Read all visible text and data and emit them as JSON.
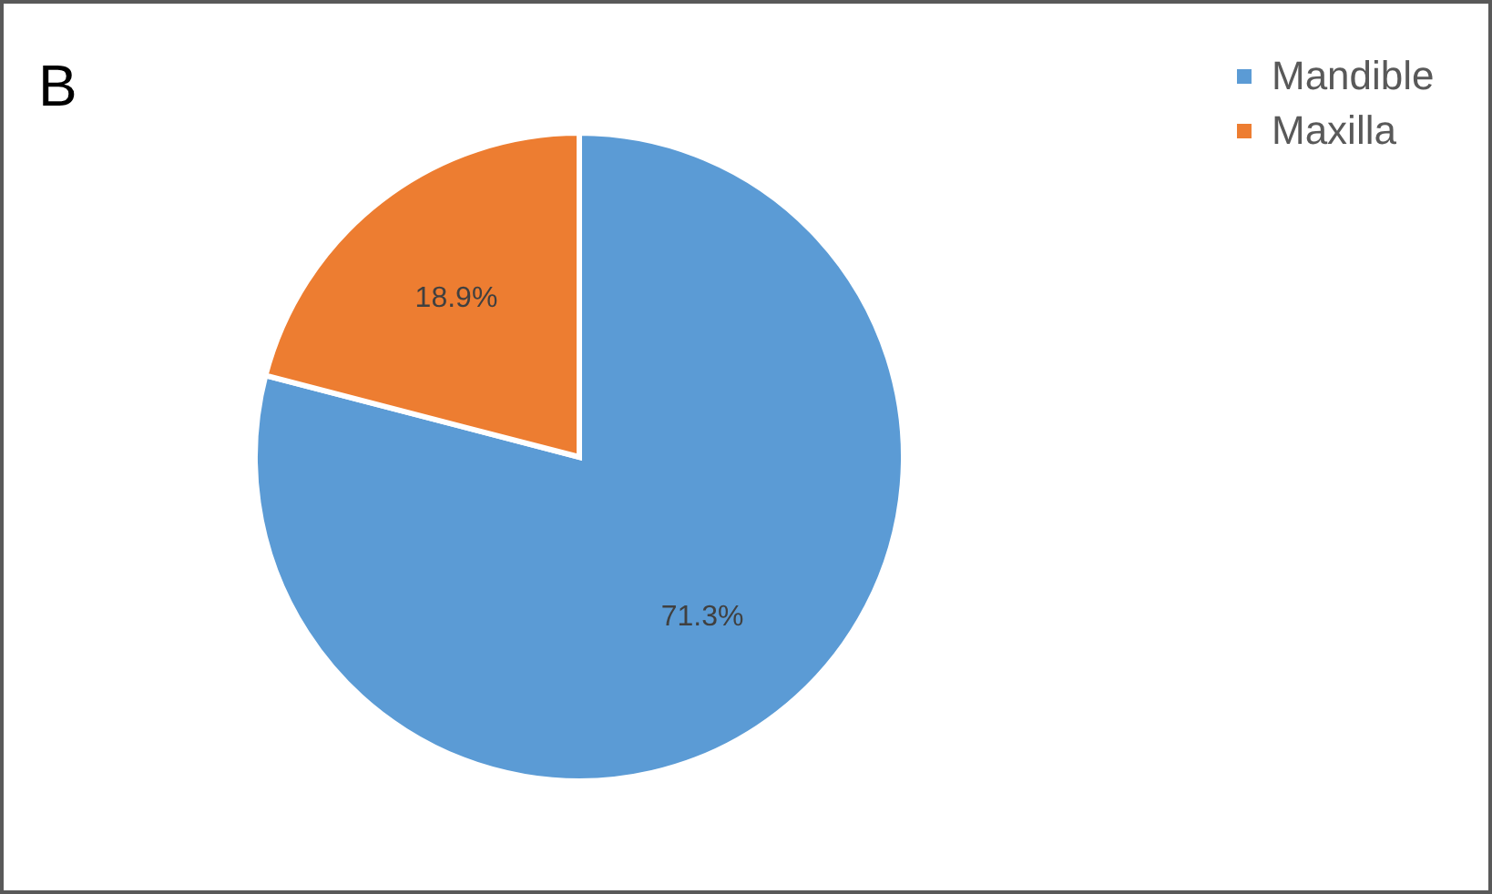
{
  "chart_data": {
    "type": "pie",
    "title": "B",
    "categories": [
      "Mandible",
      "Maxilla"
    ],
    "values": [
      71.3,
      18.9
    ],
    "colors": [
      "#5b9bd5",
      "#ed7d31"
    ],
    "value_labels": [
      "71.3%",
      "18.9%"
    ],
    "legend": "top right"
  }
}
